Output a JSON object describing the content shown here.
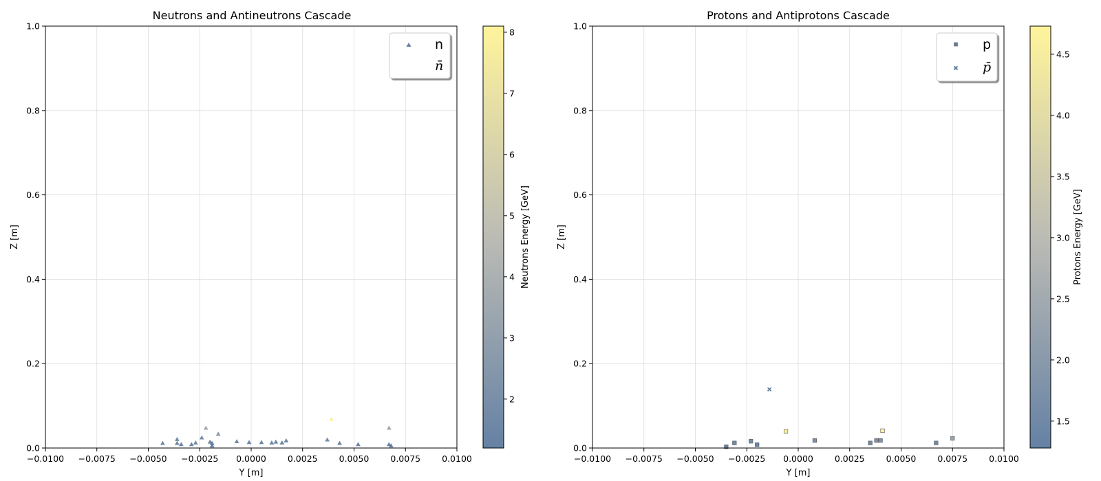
{
  "chart_data": [
    {
      "type": "scatter",
      "title": "Neutrons and Antineutrons Cascade",
      "xlabel": "Y [m]",
      "ylabel": "Z [m]",
      "xlim": [
        -0.01,
        0.01
      ],
      "ylim": [
        0,
        1.0
      ],
      "x_ticks": [
        "−0.0100",
        "−0.0075",
        "−0.0050",
        "−0.0025",
        "0.0000",
        "0.0025",
        "0.0050",
        "0.0075",
        "0.0100"
      ],
      "y_ticks": [
        "0.0",
        "0.2",
        "0.4",
        "0.6",
        "0.8",
        "1.0"
      ],
      "grid": true,
      "legend_position": "top-right",
      "colorbar": {
        "label": "Neutrons Energy [GeV]",
        "min": 1.2,
        "max": 8.1,
        "ticks": [
          "2",
          "3",
          "4",
          "5",
          "6",
          "7",
          "8"
        ],
        "colors": [
          "#4a6b94",
          "#b0b0a8",
          "#fff28a"
        ]
      },
      "series": [
        {
          "name": "n",
          "marker": "triangle",
          "points": [
            {
              "x": -0.0043,
              "y": 0.011,
              "e": 1.6
            },
            {
              "x": -0.0036,
              "y": 0.02,
              "e": 1.8
            },
            {
              "x": -0.0036,
              "y": 0.011,
              "e": 1.5
            },
            {
              "x": -0.0034,
              "y": 0.008,
              "e": 1.4
            },
            {
              "x": -0.0029,
              "y": 0.008,
              "e": 1.5
            },
            {
              "x": -0.0027,
              "y": 0.012,
              "e": 1.7
            },
            {
              "x": -0.0024,
              "y": 0.024,
              "e": 2.0
            },
            {
              "x": -0.0022,
              "y": 0.047,
              "e": 3.5
            },
            {
              "x": -0.002,
              "y": 0.014,
              "e": 1.6
            },
            {
              "x": -0.0019,
              "y": 0.011,
              "e": 1.5
            },
            {
              "x": -0.0019,
              "y": 0.005,
              "e": 1.4
            },
            {
              "x": -0.0016,
              "y": 0.033,
              "e": 2.8
            },
            {
              "x": -0.0007,
              "y": 0.015,
              "e": 1.7
            },
            {
              "x": -0.0001,
              "y": 0.013,
              "e": 1.6
            },
            {
              "x": 0.0005,
              "y": 0.013,
              "e": 1.6
            },
            {
              "x": 0.001,
              "y": 0.012,
              "e": 1.5
            },
            {
              "x": 0.0012,
              "y": 0.014,
              "e": 1.6
            },
            {
              "x": 0.0015,
              "y": 0.012,
              "e": 1.5
            },
            {
              "x": 0.0017,
              "y": 0.017,
              "e": 1.8
            },
            {
              "x": 0.0037,
              "y": 0.019,
              "e": 1.9
            },
            {
              "x": 0.0039,
              "y": 0.068,
              "e": 8.0
            },
            {
              "x": 0.0043,
              "y": 0.011,
              "e": 1.5
            },
            {
              "x": 0.0052,
              "y": 0.008,
              "e": 1.4
            },
            {
              "x": 0.0067,
              "y": 0.047,
              "e": 3.5
            },
            {
              "x": 0.0067,
              "y": 0.008,
              "e": 1.5
            },
            {
              "x": 0.0068,
              "y": 0.005,
              "e": 1.4
            }
          ]
        },
        {
          "name": "n̄",
          "marker": "none",
          "points": []
        }
      ]
    },
    {
      "type": "scatter",
      "title": "Protons and Antiprotons Cascade",
      "xlabel": "Y [m]",
      "ylabel": "Z [m]",
      "xlim": [
        -0.01,
        0.01
      ],
      "ylim": [
        0,
        1.0
      ],
      "x_ticks": [
        "−0.0100",
        "−0.0075",
        "−0.0050",
        "−0.0025",
        "0.0000",
        "0.0025",
        "0.0050",
        "0.0075",
        "0.0100"
      ],
      "y_ticks": [
        "0.0",
        "0.2",
        "0.4",
        "0.6",
        "0.8",
        "1.0"
      ],
      "grid": true,
      "legend_position": "top-right",
      "colorbar": {
        "label": "Protons Energy [GeV]",
        "min": 1.28,
        "max": 4.73,
        "ticks": [
          "1.5",
          "2.0",
          "2.5",
          "3.0",
          "3.5",
          "4.0",
          "4.5"
        ],
        "colors": [
          "#4a6b94",
          "#b0b0a8",
          "#fff28a"
        ]
      },
      "series": [
        {
          "name": "p",
          "marker": "square",
          "points": [
            {
              "x": -0.0035,
              "y": 0.003,
              "e": 1.3
            },
            {
              "x": -0.0031,
              "y": 0.012,
              "e": 1.5
            },
            {
              "x": -0.0023,
              "y": 0.016,
              "e": 1.6
            },
            {
              "x": -0.002,
              "y": 0.008,
              "e": 1.4
            },
            {
              "x": -0.0006,
              "y": 0.04,
              "e": 4.6
            },
            {
              "x": 0.0008,
              "y": 0.018,
              "e": 1.7
            },
            {
              "x": 0.0035,
              "y": 0.012,
              "e": 1.5
            },
            {
              "x": 0.0038,
              "y": 0.018,
              "e": 1.7
            },
            {
              "x": 0.004,
              "y": 0.018,
              "e": 1.8
            },
            {
              "x": 0.0041,
              "y": 0.041,
              "e": 4.7
            },
            {
              "x": 0.0067,
              "y": 0.012,
              "e": 1.6
            },
            {
              "x": 0.0075,
              "y": 0.023,
              "e": 2.3
            }
          ]
        },
        {
          "name": "p̄",
          "marker": "x",
          "points": [
            {
              "x": -0.0014,
              "y": 0.139,
              "e": 1.6
            }
          ]
        }
      ]
    }
  ]
}
